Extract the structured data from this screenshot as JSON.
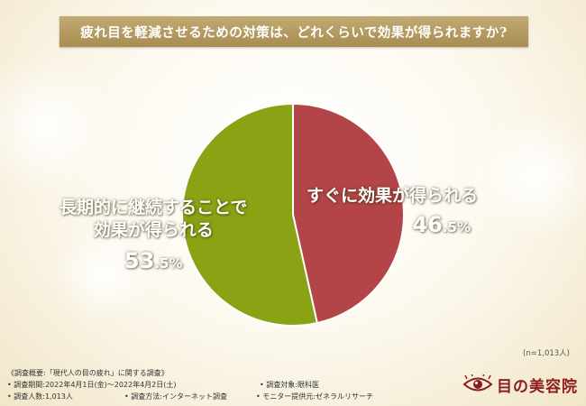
{
  "title": "疲れ目を軽減させるための対策は、どれくらいで効果が得られますか?",
  "chart_data": {
    "type": "pie",
    "title": "疲れ目を軽減させるための対策は、どれくらいで効果が得られますか?",
    "slices": [
      {
        "label_lines": [
          "すぐに効果が得られる"
        ],
        "value": 46.5,
        "pct_num": "46",
        "pct_unit": ".5%",
        "color": "#b34448"
      },
      {
        "label_lines": [
          "長期的に継続することで",
          "効果が得られる"
        ],
        "value": 53.5,
        "pct_num": "53",
        "pct_unit": ".5%",
        "color": "#8aa314"
      }
    ],
    "start": "12 o'clock",
    "direction": "clockwise"
  },
  "sample_note": "(n=1,013人)",
  "survey": {
    "heading": "《調査概要:「現代人の目の疲れ」に関する調査》",
    "items": [
      [
        "• 調査期間:2022年4月1日(金)〜2022年4月2日(土)",
        "",
        "• 調査対象:眼科医"
      ],
      [
        "• 調査人数:1,013人",
        "• 調査方法:インターネット調査",
        "• モニター提供元:ゼネラルリサーチ"
      ]
    ]
  },
  "logo": {
    "text": "目の美容院",
    "icon": "eye-icon",
    "color": "#8c1d1d"
  }
}
